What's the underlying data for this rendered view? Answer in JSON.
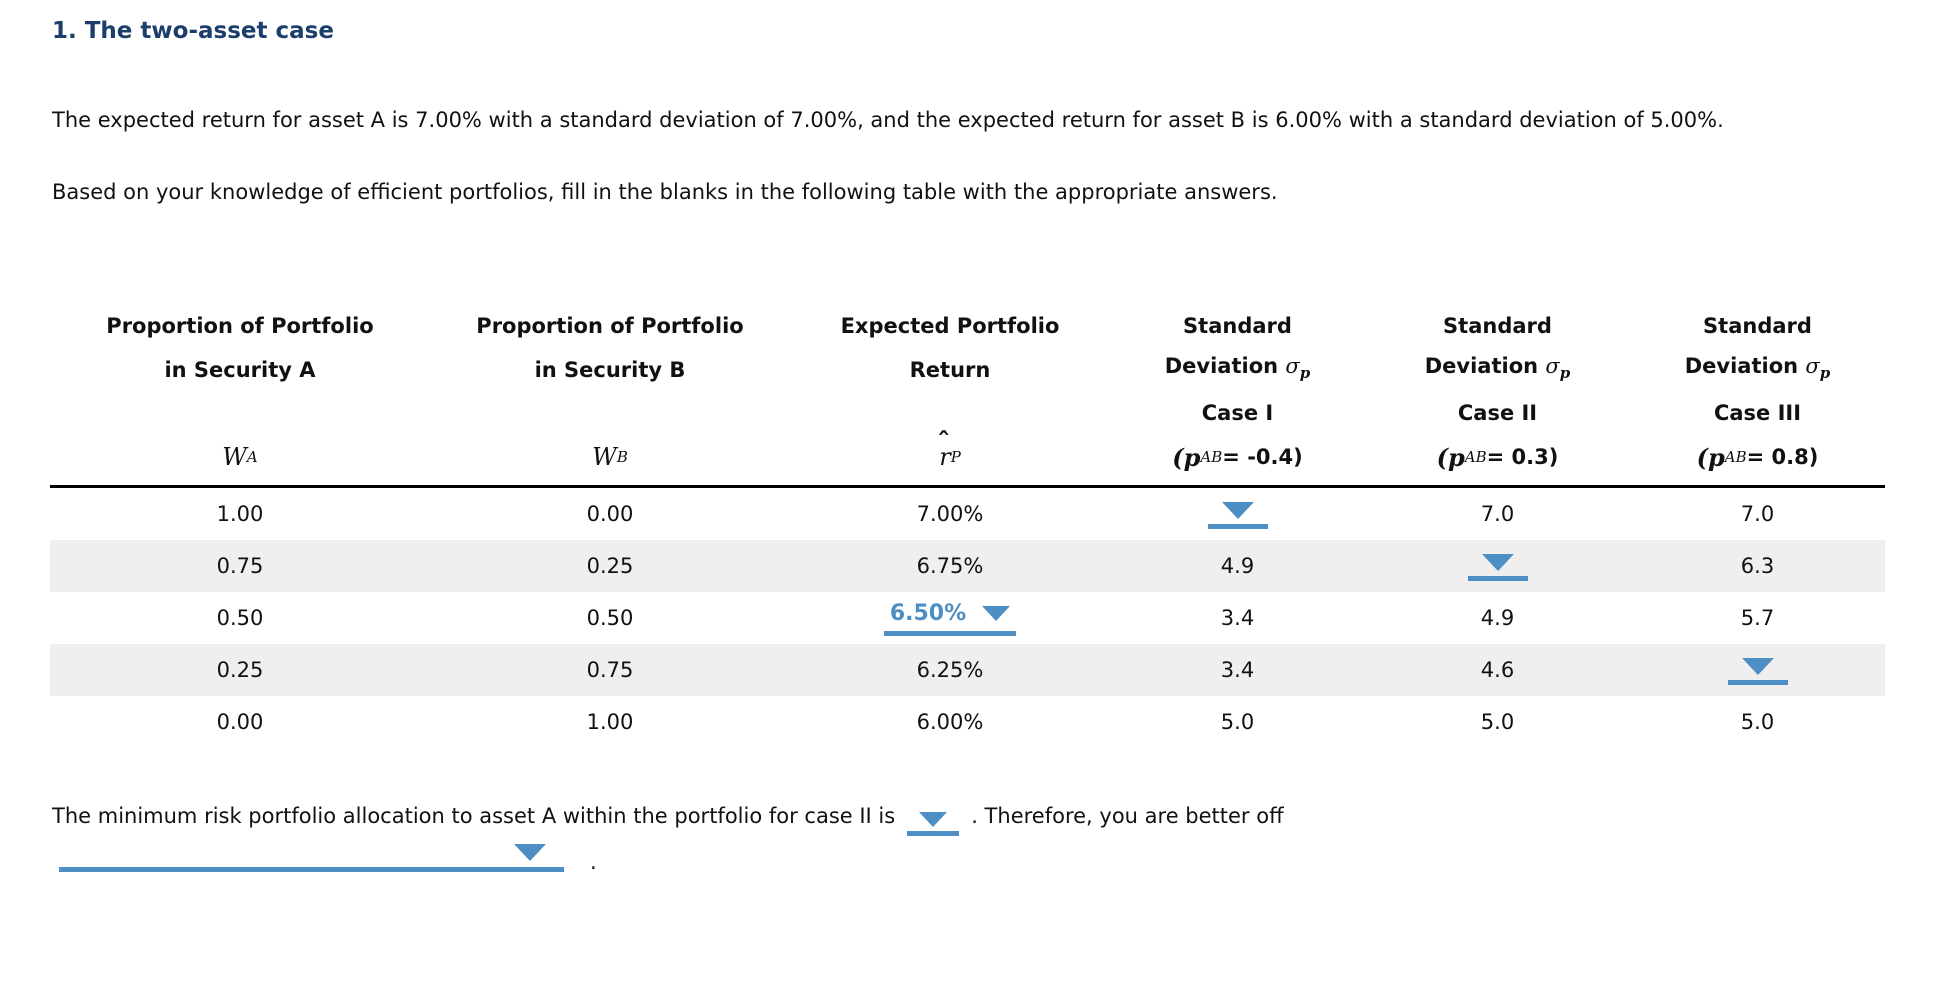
{
  "page": {
    "title": "1. The two-asset case",
    "paragraph1": "The expected return for asset A is 7.00% with a standard deviation of 7.00%, and the expected return for asset B is 6.00% with a standard deviation of 5.00%.",
    "paragraph2": "Based on your knowledge of efficient portfolios, fill in the blanks in the following table with the appropriate answers."
  },
  "table": {
    "headers": [
      {
        "line1": "Proportion of Portfolio",
        "line2": "in Security A"
      },
      {
        "line1": "Proportion of Portfolio",
        "line2": "in Security B"
      },
      {
        "line1": "Expected Portfolio",
        "line2": "Return"
      },
      {
        "line1": "Standard",
        "line2": "Deviation",
        "sigma": "σ",
        "sigma_sub": "p",
        "case_label": "Case I",
        "rho_open": "(",
        "rho_base": "p",
        "rho_sub": "AB",
        "rho_rest": " = -0.4)"
      },
      {
        "line1": "Standard",
        "line2": "Deviation",
        "sigma": "σ",
        "sigma_sub": "p",
        "case_label": "Case II",
        "rho_open": "(",
        "rho_base": "p",
        "rho_sub": "AB",
        "rho_rest": " = 0.3)"
      },
      {
        "line1": "Standard",
        "line2": "Deviation",
        "sigma": "σ",
        "sigma_sub": "p",
        "case_label": "Case III",
        "rho_open": "(",
        "rho_base": "p",
        "rho_sub": "AB",
        "rho_rest": " = 0.8)"
      }
    ],
    "symbols": {
      "wa_base": "W",
      "wa_sub": "A",
      "wb_base": "W",
      "wb_sub": "B",
      "rp_hat": "ˆ",
      "rp_base": "r",
      "rp_sub": "P"
    },
    "rows": [
      {
        "wa": "1.00",
        "wb": "0.00",
        "ret": "7.00%",
        "c1": "",
        "c2": "7.0",
        "c3": "7.0"
      },
      {
        "wa": "0.75",
        "wb": "0.25",
        "ret": "6.75%",
        "c1": "4.9",
        "c2": "",
        "c3": "6.3"
      },
      {
        "wa": "0.50",
        "wb": "0.50",
        "ret": "6.50%",
        "c1": "3.4",
        "c2": "4.9",
        "c3": "5.7"
      },
      {
        "wa": "0.25",
        "wb": "0.75",
        "ret": "6.25%",
        "c1": "3.4",
        "c2": "4.6",
        "c3": ""
      },
      {
        "wa": "0.00",
        "wb": "1.00",
        "ret": "6.00%",
        "c1": "5.0",
        "c2": "5.0",
        "c3": "5.0"
      }
    ],
    "answered_dropdown_value": "6.50%"
  },
  "footer": {
    "sentence_before": "The minimum risk portfolio allocation to asset A within the portfolio for case II is",
    "sentence_after": ". Therefore, you are better off",
    "final_period": "."
  },
  "colors": {
    "accent_blue": "#4d8fc4",
    "title_navy": "#1b3e6c",
    "stripe_gray": "#efefef",
    "separator_black": "#000000"
  }
}
